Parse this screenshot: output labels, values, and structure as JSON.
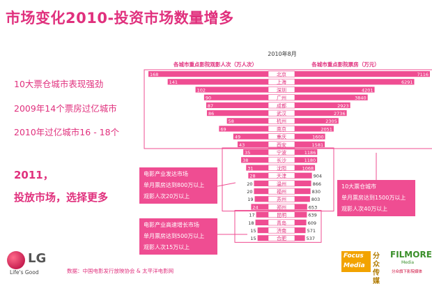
{
  "title": "市场变化2010-投资市场数量增多",
  "bullets": [
    "10大票仓城市表现强劲",
    "2009年14个票房过亿城市",
    "2010年过亿城市16 - 18个"
  ],
  "big_text": [
    "2011，",
    "投放市场，选择更多"
  ],
  "boxes": {
    "developed": [
      "电影产业发达市场",
      "单月票房达到800万以上",
      "观影人次20万以上"
    ],
    "growth": [
      "电影产业高速增长市场",
      "单月票房达到500万以上",
      "观影人次15万以上"
    ],
    "top10": [
      "10大票仓城市",
      "单月票房达到1500万以上",
      "观影人次40万以上"
    ]
  },
  "source": "数据：中国电影发行放映协会 & 太平洋电影网",
  "brand": {
    "lg": "LG",
    "lg_tagline": "Life's Good",
    "focus": [
      "Focus",
      "Media"
    ],
    "focus_cn": "分众传媒",
    "film": "FILMORE",
    "film_sub": "Media",
    "film_cn": "分众旗下影院媒体"
  },
  "colors": {
    "accent": "#e0307d",
    "bar": "#ef4d92",
    "box": "#ef4d92"
  },
  "chart_data": {
    "type": "bar",
    "title": "2010年8月",
    "left_title": "各城市重点影院观影人次（万人次）",
    "right_title": "各城市重点影院票房（万元）",
    "categories": [
      "北京",
      "上海",
      "深圳",
      "广州",
      "成都",
      "武汉",
      "杭州",
      "南京",
      "重庆",
      "西安",
      "宁波",
      "长沙",
      "沈阳",
      "天津",
      "温州",
      "福州",
      "苏州",
      "郑州",
      "昆明",
      "青岛",
      "济南",
      "合肥"
    ],
    "series": [
      {
        "name": "各城市重点影院观影人次（万人次）",
        "values": [
          168,
          141,
          102,
          90,
          87,
          86,
          58,
          69,
          49,
          43,
          35,
          38,
          31,
          28,
          20,
          20,
          19,
          24,
          17,
          18,
          15,
          15
        ]
      },
      {
        "name": "各城市重点影院票房（万元）",
        "values": [
          7116,
          6291,
          4201,
          3840,
          2923,
          2736,
          2305,
          2051,
          1600,
          1581,
          1186,
          1180,
          1068,
          904,
          866,
          830,
          803,
          653,
          639,
          609,
          571,
          537
        ]
      }
    ],
    "tiers": [
      {
        "from": 0,
        "to": 9,
        "label": "10大票仓城市"
      },
      {
        "from": 10,
        "to": 17,
        "label": "电影产业发达市场"
      },
      {
        "from": 18,
        "to": 21,
        "label": "电影产业高速增长市场"
      }
    ]
  }
}
